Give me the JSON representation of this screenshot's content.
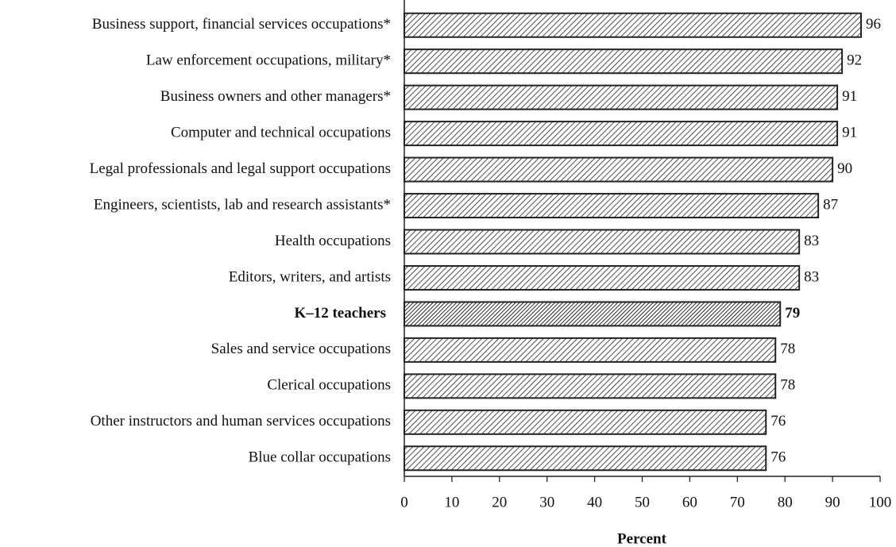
{
  "chart_data": {
    "type": "bar",
    "orientation": "horizontal",
    "categories": [
      "Business support, financial services occupations*",
      "Law enforcement occupations, military*",
      "Business owners and other managers*",
      "Computer and technical occupations",
      "Legal professionals and legal support occupations",
      "Engineers, scientists, lab and research assistants*",
      "Health occupations",
      "Editors, writers, and artists",
      "K–12 teachers",
      "Sales and service occupations",
      "Clerical occupations",
      "Other instructors and human services occupations",
      "Blue collar occupations"
    ],
    "values": [
      96,
      92,
      91,
      91,
      90,
      87,
      83,
      83,
      79,
      78,
      78,
      76,
      76
    ],
    "highlight": 8,
    "xlabel": "Percent",
    "xlim": [
      0,
      100
    ],
    "xticks": [
      0,
      10,
      20,
      30,
      40,
      50,
      60,
      70,
      80,
      90,
      100
    ],
    "color": "#222222"
  }
}
